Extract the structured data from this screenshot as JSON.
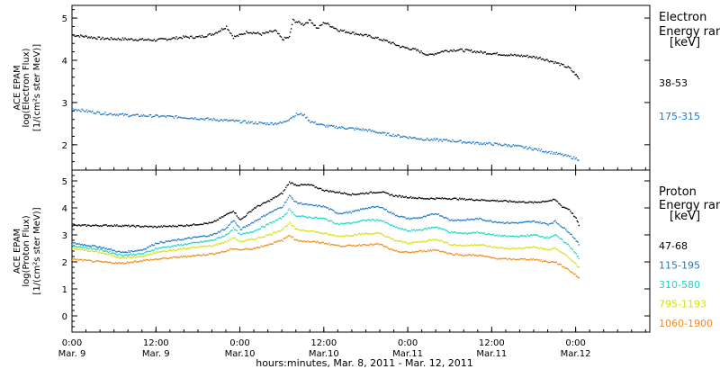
{
  "chart_data": [
    {
      "type": "scatter",
      "panel": "electron",
      "ylabel": [
        "ACE EPAM",
        "log(Electron Flux)",
        "[1/(cm²s ster MeV)]"
      ],
      "ylim": [
        1.4,
        5.3
      ],
      "yticks": [
        2,
        3,
        4,
        5
      ],
      "xlim": [
        0,
        82.6
      ],
      "legend_title": [
        "Electron",
        "Energy range",
        "[keV]"
      ],
      "legend_placement": "right",
      "series": [
        {
          "name": "38-53",
          "color": "#000000",
          "points": [
            [
              0,
              4.6
            ],
            [
              4,
              4.52
            ],
            [
              8,
              4.5
            ],
            [
              12,
              4.48
            ],
            [
              16,
              4.55
            ],
            [
              18,
              4.55
            ],
            [
              20,
              4.62
            ],
            [
              21,
              4.7
            ],
            [
              22,
              4.8
            ],
            [
              23,
              4.55
            ],
            [
              24,
              4.6
            ],
            [
              25,
              4.68
            ],
            [
              27,
              4.62
            ],
            [
              29,
              4.7
            ],
            [
              30,
              4.5
            ],
            [
              31,
              4.55
            ],
            [
              31.5,
              4.95
            ],
            [
              33,
              4.85
            ],
            [
              34,
              4.95
            ],
            [
              35,
              4.75
            ],
            [
              36,
              4.9
            ],
            [
              38,
              4.72
            ],
            [
              40,
              4.65
            ],
            [
              43,
              4.55
            ],
            [
              45,
              4.45
            ],
            [
              47,
              4.32
            ],
            [
              49,
              4.25
            ],
            [
              51,
              4.12
            ],
            [
              53,
              4.22
            ],
            [
              55,
              4.25
            ],
            [
              57,
              4.22
            ],
            [
              59,
              4.18
            ],
            [
              61,
              4.15
            ],
            [
              63,
              4.12
            ],
            [
              65,
              4.1
            ],
            [
              67,
              4.05
            ],
            [
              69,
              3.95
            ],
            [
              71,
              3.82
            ],
            [
              72,
              3.65
            ],
            [
              72.5,
              3.55
            ]
          ]
        },
        {
          "name": "175-315",
          "color": "#1f78c8",
          "points": [
            [
              0,
              2.85
            ],
            [
              4,
              2.75
            ],
            [
              8,
              2.7
            ],
            [
              12,
              2.68
            ],
            [
              16,
              2.65
            ],
            [
              20,
              2.6
            ],
            [
              24,
              2.55
            ],
            [
              26,
              2.52
            ],
            [
              28,
              2.5
            ],
            [
              30,
              2.52
            ],
            [
              31,
              2.62
            ],
            [
              32,
              2.72
            ],
            [
              33,
              2.72
            ],
            [
              34,
              2.55
            ],
            [
              36,
              2.45
            ],
            [
              39,
              2.4
            ],
            [
              42,
              2.35
            ],
            [
              45,
              2.25
            ],
            [
              48,
              2.18
            ],
            [
              51,
              2.12
            ],
            [
              54,
              2.1
            ],
            [
              57,
              2.05
            ],
            [
              60,
              2.02
            ],
            [
              63,
              1.98
            ],
            [
              66,
              1.9
            ],
            [
              69,
              1.8
            ],
            [
              71,
              1.72
            ],
            [
              72.5,
              1.65
            ]
          ]
        }
      ]
    },
    {
      "type": "scatter",
      "panel": "proton",
      "ylabel": [
        "ACE EPAM",
        "log(Proton Flux)",
        "[1/(cm²s ster MeV)]"
      ],
      "ylim": [
        -0.6,
        5.4
      ],
      "yticks": [
        0,
        1,
        2,
        3,
        4,
        5
      ],
      "xlim": [
        0,
        82.6
      ],
      "legend_title": [
        "Proton",
        "Energy range",
        "[keV]"
      ],
      "legend_placement": "right",
      "series": [
        {
          "name": "47-68",
          "color": "#000000",
          "points": [
            [
              0,
              3.35
            ],
            [
              6,
              3.35
            ],
            [
              12,
              3.3
            ],
            [
              16,
              3.35
            ],
            [
              20,
              3.45
            ],
            [
              22,
              3.75
            ],
            [
              23,
              3.9
            ],
            [
              24,
              3.55
            ],
            [
              26,
              4.0
            ],
            [
              28,
              4.25
            ],
            [
              30,
              4.55
            ],
            [
              31,
              4.95
            ],
            [
              32,
              4.85
            ],
            [
              34,
              4.85
            ],
            [
              36,
              4.65
            ],
            [
              40,
              4.5
            ],
            [
              42,
              4.55
            ],
            [
              44,
              4.6
            ],
            [
              46,
              4.45
            ],
            [
              50,
              4.35
            ],
            [
              54,
              4.35
            ],
            [
              58,
              4.3
            ],
            [
              62,
              4.25
            ],
            [
              66,
              4.2
            ],
            [
              69,
              4.3
            ],
            [
              70,
              4.05
            ],
            [
              71,
              3.95
            ],
            [
              72,
              3.6
            ],
            [
              72.5,
              3.3
            ]
          ]
        },
        {
          "name": "115-195",
          "color": "#1f78c8",
          "points": [
            [
              0,
              2.7
            ],
            [
              4,
              2.55
            ],
            [
              7,
              2.35
            ],
            [
              10,
              2.45
            ],
            [
              12,
              2.7
            ],
            [
              16,
              2.85
            ],
            [
              20,
              3.0
            ],
            [
              22,
              3.25
            ],
            [
              23,
              3.55
            ],
            [
              24,
              3.2
            ],
            [
              26,
              3.5
            ],
            [
              28,
              3.8
            ],
            [
              30,
              4.05
            ],
            [
              31,
              4.45
            ],
            [
              32,
              4.2
            ],
            [
              34,
              4.1
            ],
            [
              36,
              4.05
            ],
            [
              38,
              3.8
            ],
            [
              40,
              3.85
            ],
            [
              42,
              4.0
            ],
            [
              44,
              4.05
            ],
            [
              46,
              3.75
            ],
            [
              48,
              3.6
            ],
            [
              50,
              3.65
            ],
            [
              52,
              3.8
            ],
            [
              54,
              3.55
            ],
            [
              56,
              3.55
            ],
            [
              58,
              3.6
            ],
            [
              60,
              3.5
            ],
            [
              62,
              3.45
            ],
            [
              64,
              3.45
            ],
            [
              66,
              3.5
            ],
            [
              68,
              3.4
            ],
            [
              69,
              3.5
            ],
            [
              70,
              3.3
            ],
            [
              71,
              3.1
            ],
            [
              72,
              2.8
            ],
            [
              72.5,
              2.6
            ]
          ]
        },
        {
          "name": "310-580",
          "color": "#1cd6c8",
          "points": [
            [
              0,
              2.6
            ],
            [
              4,
              2.45
            ],
            [
              7,
              2.25
            ],
            [
              10,
              2.3
            ],
            [
              12,
              2.5
            ],
            [
              16,
              2.65
            ],
            [
              20,
              2.8
            ],
            [
              22,
              3.0
            ],
            [
              23,
              3.25
            ],
            [
              24,
              3.0
            ],
            [
              26,
              3.15
            ],
            [
              28,
              3.4
            ],
            [
              30,
              3.65
            ],
            [
              31,
              3.95
            ],
            [
              32,
              3.7
            ],
            [
              34,
              3.65
            ],
            [
              36,
              3.6
            ],
            [
              38,
              3.4
            ],
            [
              40,
              3.45
            ],
            [
              42,
              3.55
            ],
            [
              44,
              3.55
            ],
            [
              46,
              3.3
            ],
            [
              48,
              3.15
            ],
            [
              50,
              3.2
            ],
            [
              52,
              3.3
            ],
            [
              54,
              3.1
            ],
            [
              56,
              3.05
            ],
            [
              58,
              3.1
            ],
            [
              60,
              3.0
            ],
            [
              62,
              2.95
            ],
            [
              64,
              2.95
            ],
            [
              66,
              3.0
            ],
            [
              68,
              2.9
            ],
            [
              69,
              3.0
            ],
            [
              70,
              2.8
            ],
            [
              71,
              2.6
            ],
            [
              72,
              2.3
            ],
            [
              72.5,
              2.05
            ]
          ]
        },
        {
          "name": "795-1193",
          "color": "#d8e010",
          "points": [
            [
              0,
              2.5
            ],
            [
              4,
              2.35
            ],
            [
              7,
              2.15
            ],
            [
              10,
              2.2
            ],
            [
              12,
              2.35
            ],
            [
              16,
              2.5
            ],
            [
              20,
              2.6
            ],
            [
              22,
              2.75
            ],
            [
              23,
              2.9
            ],
            [
              24,
              2.75
            ],
            [
              26,
              2.85
            ],
            [
              28,
              3.0
            ],
            [
              30,
              3.2
            ],
            [
              31,
              3.45
            ],
            [
              32,
              3.2
            ],
            [
              34,
              3.15
            ],
            [
              36,
              3.05
            ],
            [
              38,
              2.95
            ],
            [
              40,
              3.0
            ],
            [
              42,
              3.05
            ],
            [
              44,
              3.05
            ],
            [
              46,
              2.8
            ],
            [
              48,
              2.7
            ],
            [
              50,
              2.75
            ],
            [
              52,
              2.85
            ],
            [
              54,
              2.65
            ],
            [
              56,
              2.6
            ],
            [
              58,
              2.65
            ],
            [
              60,
              2.55
            ],
            [
              62,
              2.5
            ],
            [
              64,
              2.5
            ],
            [
              66,
              2.55
            ],
            [
              68,
              2.45
            ],
            [
              69,
              2.5
            ],
            [
              70,
              2.35
            ],
            [
              71,
              2.15
            ],
            [
              72,
              1.9
            ],
            [
              72.5,
              1.75
            ]
          ]
        },
        {
          "name": "1060-1900",
          "color": "#f08c1a",
          "points": [
            [
              0,
              2.1
            ],
            [
              4,
              2.0
            ],
            [
              7,
              1.95
            ],
            [
              10,
              2.05
            ],
            [
              12,
              2.1
            ],
            [
              16,
              2.2
            ],
            [
              20,
              2.3
            ],
            [
              22,
              2.4
            ],
            [
              23,
              2.5
            ],
            [
              24,
              2.45
            ],
            [
              26,
              2.5
            ],
            [
              28,
              2.65
            ],
            [
              30,
              2.8
            ],
            [
              31,
              3.0
            ],
            [
              32,
              2.8
            ],
            [
              34,
              2.75
            ],
            [
              36,
              2.7
            ],
            [
              38,
              2.6
            ],
            [
              40,
              2.6
            ],
            [
              42,
              2.65
            ],
            [
              44,
              2.65
            ],
            [
              46,
              2.4
            ],
            [
              48,
              2.35
            ],
            [
              50,
              2.4
            ],
            [
              52,
              2.45
            ],
            [
              54,
              2.3
            ],
            [
              56,
              2.25
            ],
            [
              58,
              2.25
            ],
            [
              60,
              2.15
            ],
            [
              62,
              2.1
            ],
            [
              64,
              2.1
            ],
            [
              66,
              2.1
            ],
            [
              68,
              2.0
            ],
            [
              69,
              2.0
            ],
            [
              70,
              1.85
            ],
            [
              71,
              1.7
            ],
            [
              72,
              1.5
            ],
            [
              72.5,
              1.35
            ]
          ]
        }
      ]
    }
  ],
  "x_axis": {
    "ticks": [
      {
        "hours": 0,
        "top": "0:00",
        "bottom": "Mar. 9"
      },
      {
        "hours": 12,
        "top": "12:00",
        "bottom": "Mar. 9"
      },
      {
        "hours": 24,
        "top": "0:00",
        "bottom": "Mar.10"
      },
      {
        "hours": 36,
        "top": "12:00",
        "bottom": "Mar.10"
      },
      {
        "hours": 48,
        "top": "0:00",
        "bottom": "Mar.11"
      },
      {
        "hours": 60,
        "top": "12:00",
        "bottom": "Mar.11"
      },
      {
        "hours": 72,
        "top": "0:00",
        "bottom": "Mar.12"
      }
    ],
    "label": "hours:minutes, Mar.  8, 2011 - Mar. 12, 2011"
  }
}
